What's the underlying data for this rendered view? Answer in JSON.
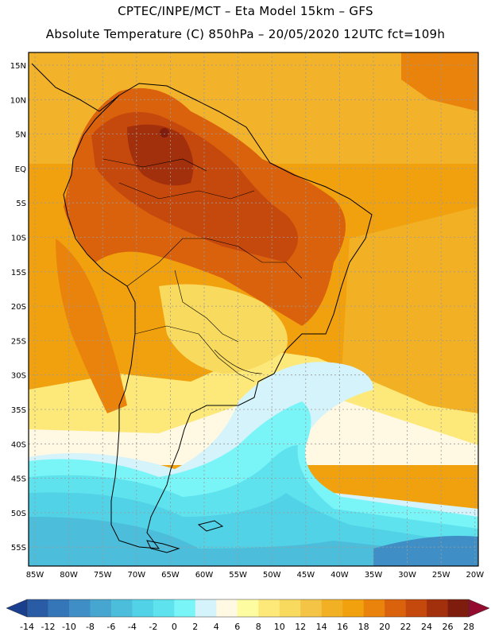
{
  "title_line1": "CPTEC/INPE/MCT –  Eta Model 15km – GFS",
  "title_line2": "Absolute Temperature (C) 850hPa – 20/05/2020 12UTC fct=109h",
  "lat_labels": [
    "15N",
    "10N",
    "5N",
    "EQ",
    "5S",
    "10S",
    "15S",
    "20S",
    "25S",
    "30S",
    "35S",
    "40S",
    "45S",
    "50S",
    "55S"
  ],
  "lon_labels": [
    "85W",
    "80W",
    "75W",
    "70W",
    "65W",
    "60W",
    "55W",
    "50W",
    "45W",
    "40W",
    "35W",
    "30W",
    "25W",
    "20W"
  ],
  "colorbar": {
    "labels": [
      "-14",
      "-12",
      "-10",
      "-8",
      "-6",
      "-4",
      "-2",
      "0",
      "2",
      "4",
      "6",
      "8",
      "10",
      "12",
      "14",
      "16",
      "18",
      "20",
      "22",
      "24",
      "26",
      "28"
    ],
    "colors": [
      "#1b3f8f",
      "#2a5ca6",
      "#3576b8",
      "#3f8fc6",
      "#47a6cf",
      "#4cbedb",
      "#52d2e6",
      "#5ee3ee",
      "#7af5f7",
      "#d5f3fb",
      "#fff8e2",
      "#fefca0",
      "#fde97a",
      "#f8da5e",
      "#f4c446",
      "#f2b024",
      "#f1a10e",
      "#e9830b",
      "#da620d",
      "#c5480c",
      "#a3300c",
      "#7e1c0e",
      "#930c30"
    ]
  }
}
